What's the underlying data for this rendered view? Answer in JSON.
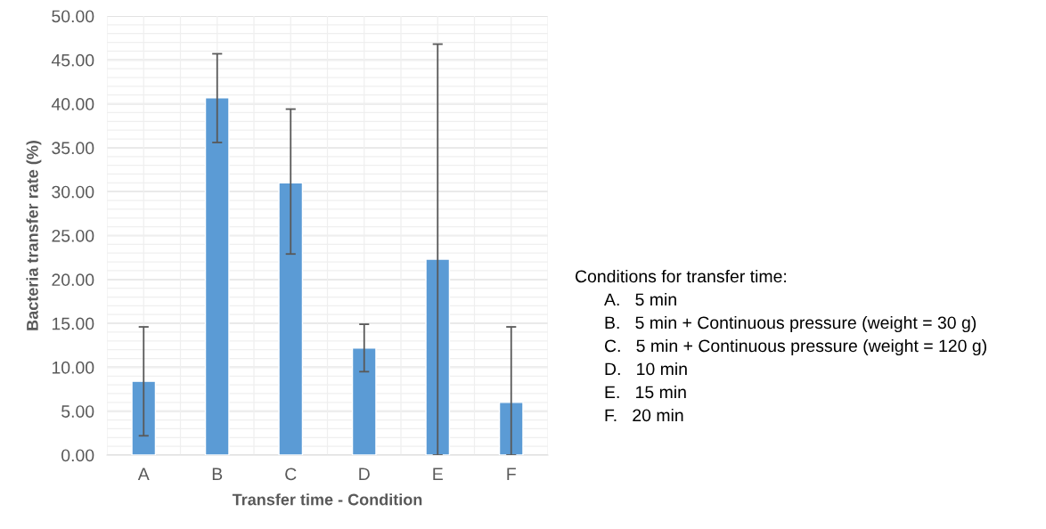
{
  "chart_data": {
    "type": "bar",
    "xlabel": "Transfer time - Condition",
    "ylabel": "Bacteria transfer rate (%)",
    "categories": [
      "A",
      "B",
      "C",
      "D",
      "E",
      "F"
    ],
    "values": [
      8.4,
      40.7,
      31.0,
      12.2,
      22.3,
      6.0
    ],
    "errors": [
      [
        2.2,
        14.6
      ],
      [
        35.6,
        45.7
      ],
      [
        22.9,
        39.4
      ],
      [
        9.5,
        14.9
      ],
      [
        0,
        46.8
      ],
      [
        0,
        14.6
      ]
    ],
    "color": "#5b9bd5",
    "ylim": [
      0,
      50
    ],
    "yticks": [
      {
        "value": 0,
        "label": "0.00"
      },
      {
        "value": 5,
        "label": "5.00"
      },
      {
        "value": 10,
        "label": "10.00"
      },
      {
        "value": 15,
        "label": "15.00"
      },
      {
        "value": 20,
        "label": "20.00"
      },
      {
        "value": 25,
        "label": "25.00"
      },
      {
        "value": 30,
        "label": "30.00"
      },
      {
        "value": 35,
        "label": "35.00"
      },
      {
        "value": 40,
        "label": "40.00"
      },
      {
        "value": 45,
        "label": "45.00"
      },
      {
        "value": 50,
        "label": "50.00"
      }
    ],
    "grid": true,
    "annotations": [
      "Conditions for transfer time:",
      "A.   5 min",
      "B.   5 min + Continuous pressure (weight = 30 g)",
      "C.   5 min + Continuous pressure (weight = 120 g)",
      "D.   10 min",
      "E.   15 min",
      "F.   20 min"
    ]
  }
}
